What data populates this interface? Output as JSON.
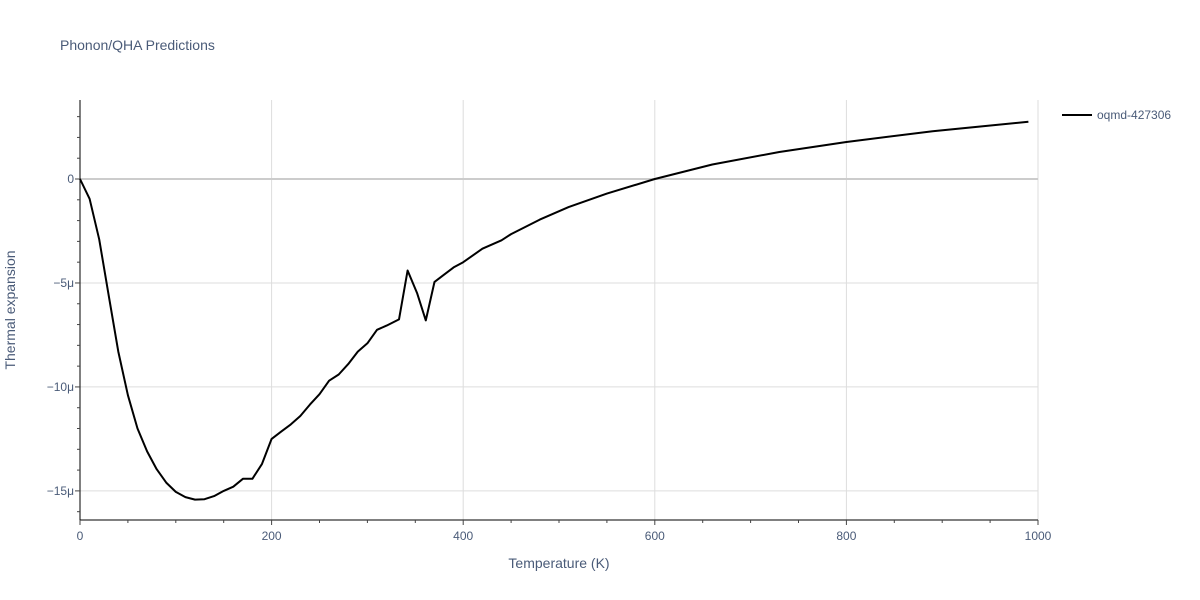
{
  "chart_data": {
    "type": "line",
    "title": "Phonon/QHA Predictions",
    "xlabel": "Temperature (K)",
    "ylabel": "Thermal expansion",
    "xlim": [
      0,
      1000
    ],
    "ylim": [
      -1.64e-05,
      3.8e-06
    ],
    "x_ticks": [
      0,
      200,
      400,
      600,
      800,
      1000
    ],
    "x_tick_labels": [
      "0",
      "200",
      "400",
      "600",
      "800",
      "1000"
    ],
    "y_ticks": [
      -1.5e-05,
      -1e-05,
      -5e-06,
      0
    ],
    "y_tick_labels": [
      "−15μ",
      "−10μ",
      "−5μ",
      "0"
    ],
    "grid": true,
    "legend": "right",
    "series": [
      {
        "name": "oqmd-427306",
        "color": "#000000",
        "x": [
          0,
          10,
          20,
          30,
          40,
          50,
          60,
          70,
          80,
          90,
          100,
          110,
          120,
          130,
          140,
          150,
          160,
          170,
          180,
          190,
          200,
          210,
          220,
          230,
          240,
          250,
          260,
          270,
          280,
          290,
          300,
          310,
          320,
          333,
          342,
          352,
          361,
          370,
          380,
          390,
          400,
          420,
          440,
          450,
          480,
          510,
          550,
          600,
          660,
          730,
          800,
          890,
          990
        ],
        "y": [
          0,
          -9.5e-07,
          -2.9e-06,
          -5.6e-06,
          -8.3e-06,
          -1.04e-05,
          -1.2e-05,
          -1.31e-05,
          -1.395e-05,
          -1.46e-05,
          -1.505e-05,
          -1.53e-05,
          -1.542e-05,
          -1.54e-05,
          -1.525e-05,
          -1.5e-05,
          -1.48e-05,
          -1.442e-05,
          -1.442e-05,
          -1.37e-05,
          -1.25e-05,
          -1.215e-05,
          -1.18e-05,
          -1.14e-05,
          -1.085e-05,
          -1.035e-05,
          -9.7e-06,
          -9.4e-06,
          -8.9e-06,
          -8.3e-06,
          -7.9e-06,
          -7.25e-06,
          -7.05e-06,
          -6.75e-06,
          -4.4e-06,
          -5.5e-06,
          -6.8e-06,
          -4.95e-06,
          -4.6e-06,
          -4.25e-06,
          -4e-06,
          -3.35e-06,
          -2.95e-06,
          -2.65e-06,
          -1.95e-06,
          -1.35e-06,
          -7e-07,
          0.0,
          7e-07,
          1.3e-06,
          1.78e-06,
          2.3e-06,
          2.75e-06
        ]
      }
    ]
  }
}
